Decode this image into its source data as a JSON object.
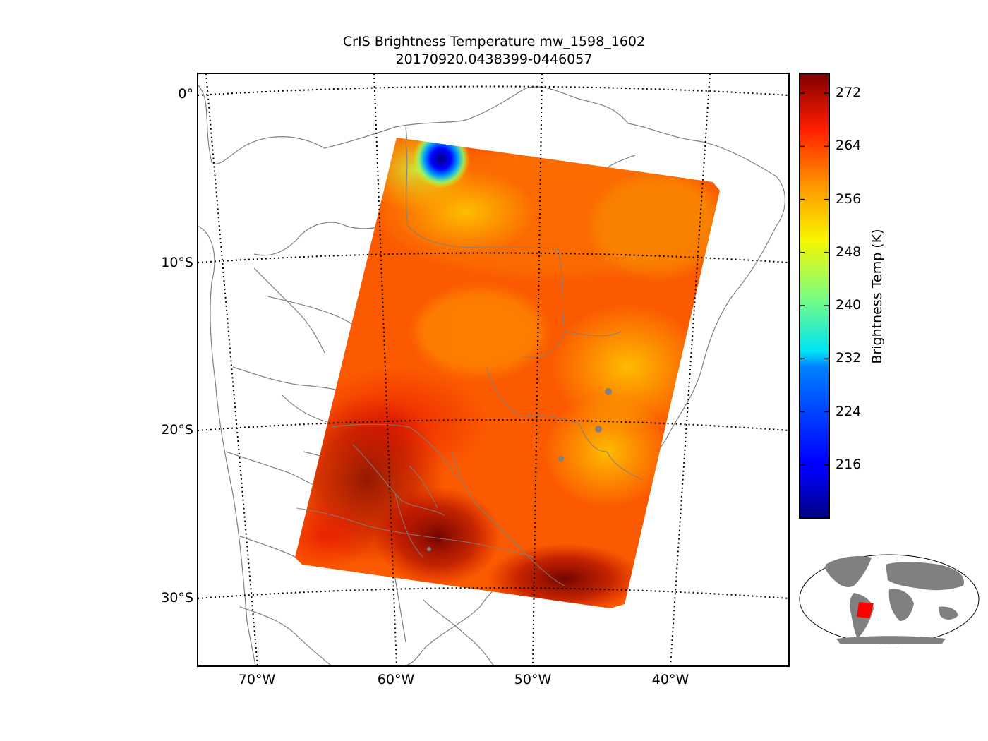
{
  "map": {
    "title": "CrIS Brightness Temperature mw_1598_1602",
    "subtitle": "20170920.0438399-0446057",
    "lat_labels": [
      "0°",
      "10°S",
      "20°S",
      "30°S"
    ],
    "lon_labels": [
      "70°W",
      "60°W",
      "50°W",
      "40°W"
    ],
    "extent": {
      "lon_min": -75,
      "lon_max": -32,
      "lat_min": -35,
      "lat_max": 1
    },
    "graticule_style": "dotted",
    "coastline_color": "#808080",
    "swath": {
      "corners_lonlat": [
        [
          -60.5,
          -2.8
        ],
        [
          -37.5,
          -5.3
        ],
        [
          -43.5,
          -30.8
        ],
        [
          -67.5,
          -28.0
        ]
      ],
      "cold_spot": {
        "lon": -56.6,
        "lat": -4.0,
        "temp_k": 210
      },
      "typical_temp_k": 263,
      "warm_region_temp_k": 274,
      "cool_region_temp_k": 255
    }
  },
  "colorbar": {
    "label": "Brightness Temp (K)",
    "colormap": "jet",
    "vmin": 208,
    "vmax": 275,
    "ticks": [
      "272",
      "264",
      "256",
      "248",
      "240",
      "232",
      "224",
      "216"
    ],
    "tick_values": [
      272,
      264,
      256,
      248,
      240,
      232,
      224,
      216
    ]
  },
  "inset": {
    "description_icon": "world-locator-map",
    "land_color": "#808080",
    "highlight_color": "#ff0000"
  }
}
